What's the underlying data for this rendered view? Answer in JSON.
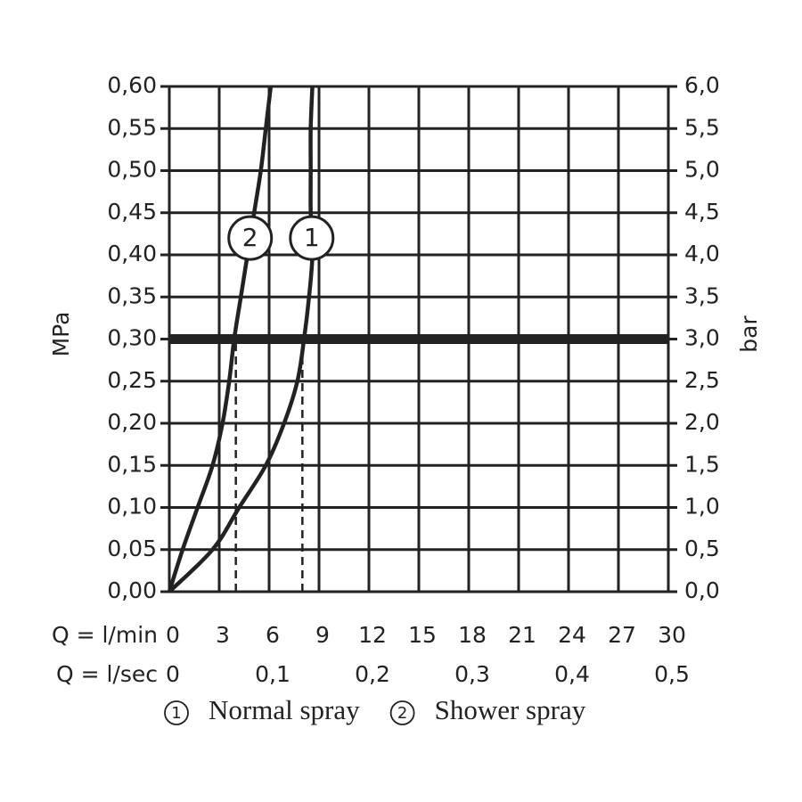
{
  "chart_data": {
    "type": "line",
    "ylabel": "MPa",
    "y2label": "bar",
    "xlabel": "Q = l/min",
    "x2label": "Q = l/sec",
    "xlim": [
      0,
      30
    ],
    "xticks": [
      0,
      3,
      6,
      9,
      12,
      15,
      18,
      21,
      24,
      27,
      30
    ],
    "x2lim": [
      0,
      0.5
    ],
    "x2ticks": [
      0,
      {
        "value": 0.1,
        "label": "0,1"
      },
      {
        "value": 0.2,
        "label": "0,2"
      },
      {
        "value": 0.3,
        "label": "0,3"
      },
      {
        "value": 0.4,
        "label": "0,4"
      },
      {
        "value": 0.5,
        "label": "0,5"
      }
    ],
    "ylim": [
      0,
      0.6
    ],
    "yticks": [
      {
        "value": 0,
        "label": "0,00"
      },
      {
        "value": 0.05,
        "label": "0,05"
      },
      {
        "value": 0.1,
        "label": "0,10"
      },
      {
        "value": 0.15,
        "label": "0,15"
      },
      {
        "value": 0.2,
        "label": "0,20"
      },
      {
        "value": 0.25,
        "label": "0,25"
      },
      {
        "value": 0.3,
        "label": "0,30"
      },
      {
        "value": 0.35,
        "label": "0,35"
      },
      {
        "value": 0.4,
        "label": "0,40"
      },
      {
        "value": 0.45,
        "label": "0,45"
      },
      {
        "value": 0.5,
        "label": "0,50"
      },
      {
        "value": 0.55,
        "label": "0,55"
      },
      {
        "value": 0.6,
        "label": "0,60"
      }
    ],
    "y2lim": [
      0,
      6
    ],
    "y2ticks": [
      {
        "value": 0,
        "label": "0,0"
      },
      {
        "value": 0.5,
        "label": "0,5"
      },
      {
        "value": 1,
        "label": "1,0"
      },
      {
        "value": 1.5,
        "label": "1,5"
      },
      {
        "value": 2,
        "label": "2,0"
      },
      {
        "value": 2.5,
        "label": "2,5"
      },
      {
        "value": 3,
        "label": "3,0"
      },
      {
        "value": 3.5,
        "label": "3,5"
      },
      {
        "value": 4,
        "label": "4,0"
      },
      {
        "value": 4.5,
        "label": "4,5"
      },
      {
        "value": 5,
        "label": "5,0"
      },
      {
        "value": 5.5,
        "label": "5,5"
      },
      {
        "value": 6,
        "label": "6,0"
      }
    ],
    "grid": true,
    "hline": 0.3,
    "dashed_x": [
      4,
      8
    ],
    "series": [
      {
        "name": "Normal spray",
        "marker_label": "1",
        "label_y": 0.42,
        "color": "#222222",
        "x": [
          0,
          2.6,
          4.2,
          5.8,
          6.9,
          7.7,
          8.1,
          8.4,
          8.6,
          8.5,
          8.5,
          8.5,
          8.6
        ],
        "values": [
          0,
          0.05,
          0.1,
          0.15,
          0.2,
          0.25,
          0.3,
          0.35,
          0.4,
          0.45,
          0.5,
          0.55,
          0.6
        ]
      },
      {
        "name": "Shower spray",
        "marker_label": "2",
        "label_y": 0.42,
        "color": "#222222",
        "x": [
          0,
          0.8,
          1.7,
          2.6,
          3.2,
          3.6,
          3.9,
          4.3,
          4.7,
          5.1,
          5.5,
          5.8,
          6.1
        ],
        "values": [
          0,
          0.05,
          0.1,
          0.15,
          0.2,
          0.25,
          0.3,
          0.35,
          0.4,
          0.45,
          0.5,
          0.55,
          0.6
        ]
      }
    ]
  }
}
